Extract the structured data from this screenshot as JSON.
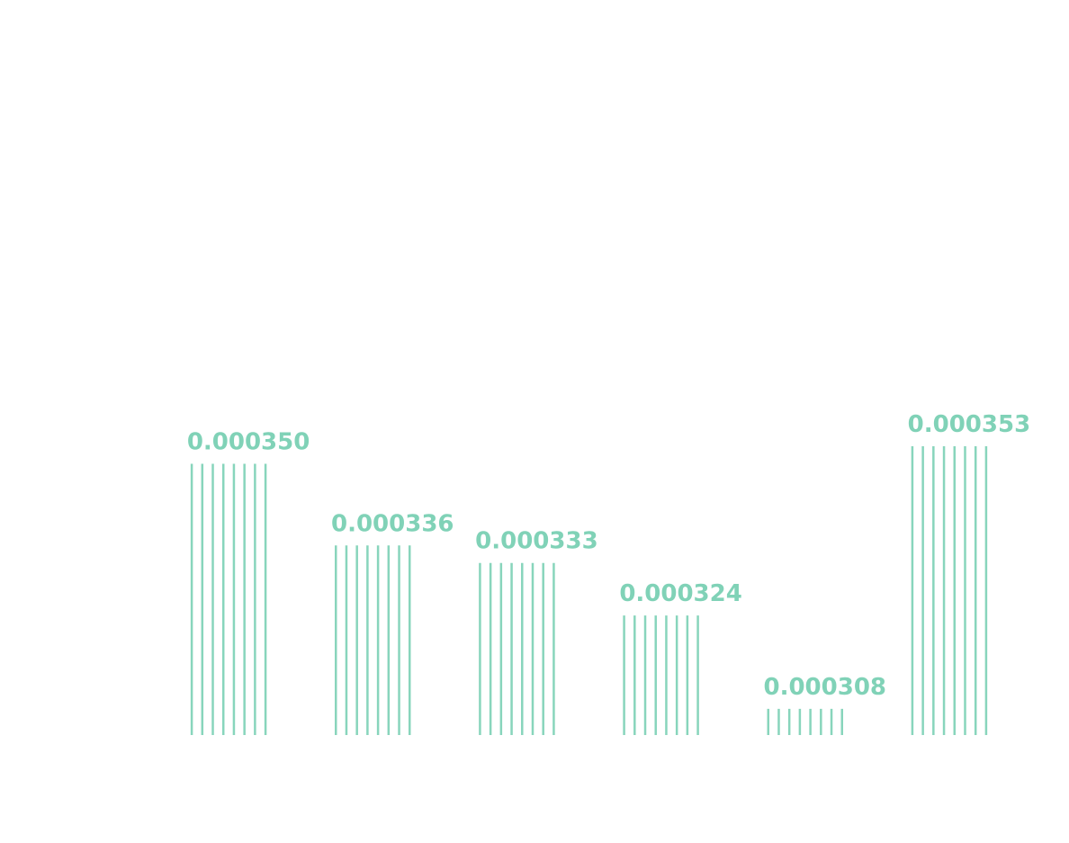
{
  "chart_data": {
    "type": "bar",
    "categories": [
      null,
      null,
      null,
      null,
      null,
      null
    ],
    "values": [
      0.00035,
      0.000336,
      0.000333,
      0.000324,
      0.000308,
      0.000353
    ],
    "value_labels": [
      "0.000350",
      "0.000336",
      "0.000333",
      "0.000324",
      "0.000308",
      "0.000353"
    ],
    "color": "#88d5bc",
    "ylim": [
      0.0003035,
      0.00038
    ]
  }
}
